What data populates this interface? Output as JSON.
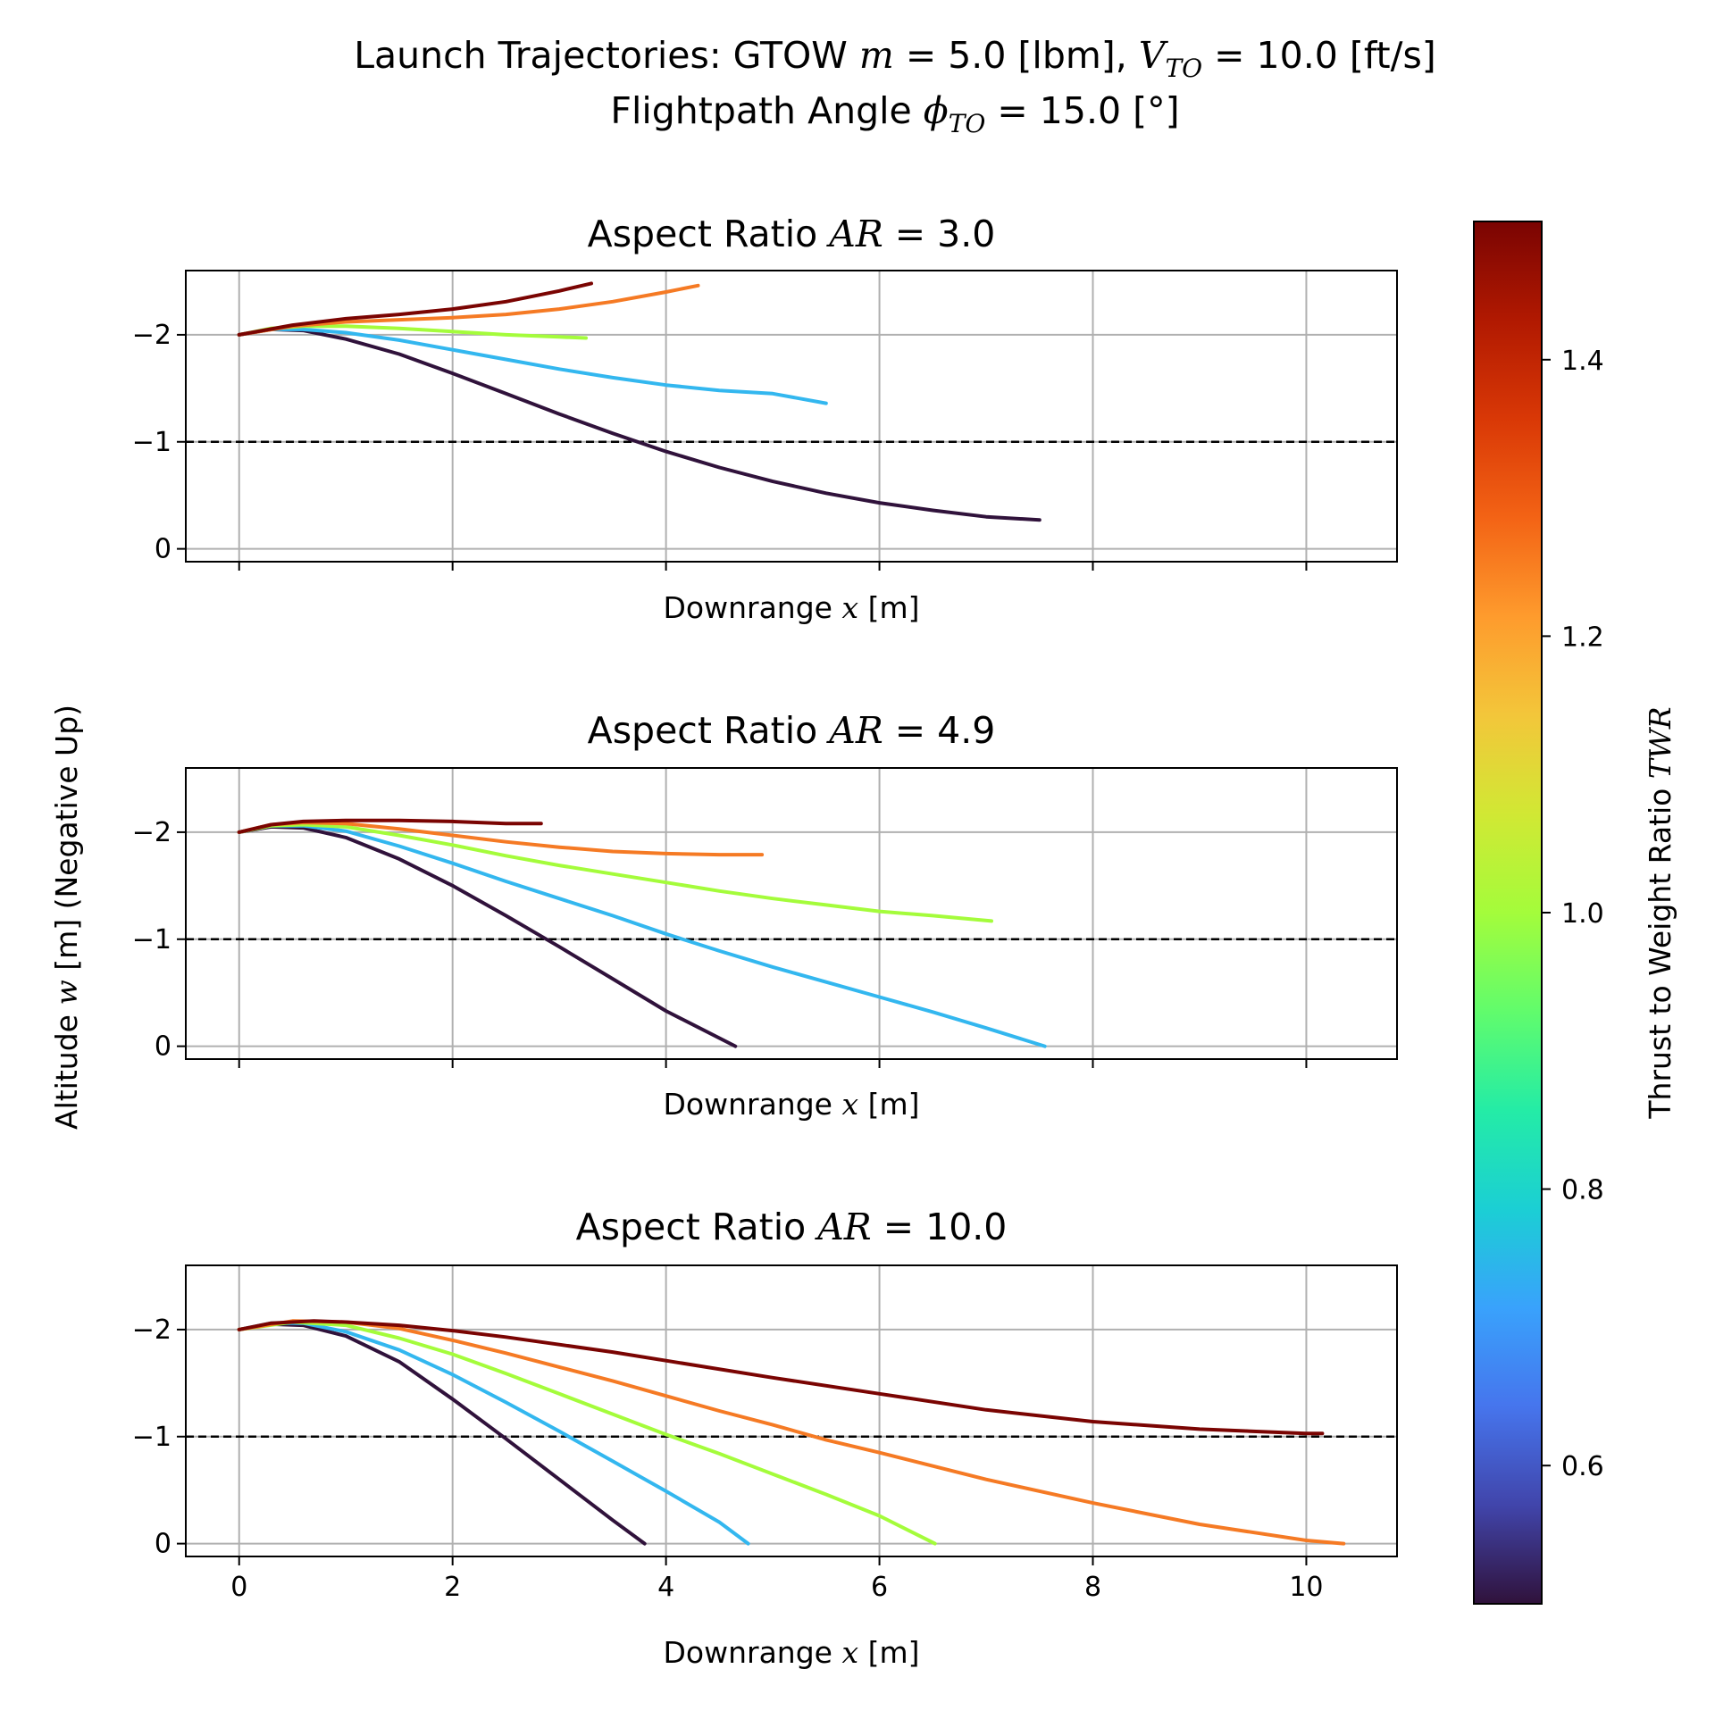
{
  "chart_data": {
    "suptitle": {
      "line1_prefix": "Launch Trajectories: GTOW ",
      "line1_m_sym": "m",
      "line1_m_val": " = 5.0 [lbm], ",
      "line1_v_sym": "V",
      "line1_v_sub": "TO",
      "line1_v_val": " = 10.0 [ft/s]",
      "line2_prefix": "Flightpath Angle ",
      "line2_phi_sym": "ϕ",
      "line2_phi_sub": "TO",
      "line2_phi_val": " = 15.0 [°]"
    },
    "shared_ylabel": "Altitude w [m] (Negative Up)",
    "shared_ylabel_prefix": "Altitude ",
    "shared_ylabel_sym": "w",
    "shared_ylabel_suffix": " [m] (Negative Up)",
    "xlabel_prefix": "Downrange ",
    "xlabel_sym": "x",
    "xlabel_suffix": " [m]",
    "xlim": [
      -0.5,
      10.85
    ],
    "ylim": [
      0.12,
      -2.6
    ],
    "y_inverted": true,
    "x_ticks": [
      0,
      2,
      4,
      6,
      8,
      10
    ],
    "x_tick_labels": [
      "0",
      "2",
      "4",
      "6",
      "8",
      "10"
    ],
    "y_ticks": [
      -2,
      -1,
      0
    ],
    "y_tick_labels": [
      "−2",
      "−1",
      "0"
    ],
    "grid": true,
    "reference_line": {
      "y": -1,
      "style": "dashed",
      "color": "#000000"
    },
    "colorbar": {
      "label_prefix": "Thrust to Weight Ratio ",
      "label_sym": "TWR",
      "range": [
        0.5,
        1.5
      ],
      "ticks": [
        0.6,
        0.8,
        1.0,
        1.2,
        1.4
      ],
      "tick_labels": [
        "0.6",
        "0.8",
        "1.0",
        "1.2",
        "1.4"
      ],
      "colormap": "turbo",
      "stops": [
        "#30123b",
        "#4145ab",
        "#4675ed",
        "#39a2fc",
        "#1bcfd4",
        "#24eca6",
        "#61fc6c",
        "#a4fc3b",
        "#d1e834",
        "#f3c63a",
        "#fe9b2d",
        "#f36315",
        "#d93806",
        "#b11901",
        "#7a0402"
      ]
    },
    "panels": [
      {
        "type": "line",
        "title_prefix": "Aspect Ratio ",
        "title_sym": "AR",
        "title_val": " = 3.0",
        "show_x_tick_labels": false,
        "series": [
          {
            "twr": 0.5,
            "color": "#30123b",
            "x": [
              0,
              0.3,
              0.6,
              1.0,
              1.5,
              2.0,
              2.5,
              3.0,
              3.5,
              4.0,
              4.5,
              5.0,
              5.5,
              6.0,
              6.5,
              7.0,
              7.5
            ],
            "y": [
              -2.0,
              -2.05,
              -2.04,
              -1.96,
              -1.82,
              -1.64,
              -1.45,
              -1.26,
              -1.08,
              -0.91,
              -0.76,
              -0.63,
              -0.52,
              -0.43,
              -0.36,
              -0.3,
              -0.27
            ]
          },
          {
            "twr": 0.75,
            "color": "#33b7ef",
            "x": [
              0,
              0.3,
              0.6,
              1.0,
              1.5,
              2.0,
              2.5,
              3.0,
              3.5,
              4.0,
              4.5,
              5.0,
              5.5
            ],
            "y": [
              -2.0,
              -2.05,
              -2.05,
              -2.02,
              -1.95,
              -1.86,
              -1.77,
              -1.68,
              -1.6,
              -1.53,
              -1.48,
              -1.45,
              -1.36
            ]
          },
          {
            "twr": 1.0,
            "color": "#a4fc3b",
            "x": [
              0,
              0.3,
              0.6,
              1.0,
              1.5,
              2.0,
              2.5,
              3.0,
              3.25
            ],
            "y": [
              -2.0,
              -2.06,
              -2.08,
              -2.08,
              -2.06,
              -2.03,
              -2.0,
              -1.98,
              -1.97
            ]
          },
          {
            "twr": 1.25,
            "color": "#f57a24",
            "x": [
              0,
              0.5,
              1.0,
              1.5,
              2.0,
              2.5,
              3.0,
              3.5,
              4.0,
              4.3
            ],
            "y": [
              -2.0,
              -2.08,
              -2.12,
              -2.14,
              -2.16,
              -2.19,
              -2.24,
              -2.31,
              -2.4,
              -2.46
            ]
          },
          {
            "twr": 1.5,
            "color": "#7a0402",
            "x": [
              0,
              0.5,
              1.0,
              1.5,
              2.0,
              2.5,
              3.0,
              3.3
            ],
            "y": [
              -2.0,
              -2.09,
              -2.15,
              -2.19,
              -2.24,
              -2.31,
              -2.41,
              -2.48
            ]
          }
        ]
      },
      {
        "type": "line",
        "title_prefix": "Aspect Ratio ",
        "title_sym": "AR",
        "title_val": " = 4.9",
        "show_x_tick_labels": false,
        "series": [
          {
            "twr": 0.5,
            "color": "#30123b",
            "x": [
              0,
              0.3,
              0.6,
              1.0,
              1.5,
              2.0,
              2.5,
              3.0,
              3.5,
              4.0,
              4.65
            ],
            "y": [
              -2.0,
              -2.05,
              -2.04,
              -1.95,
              -1.75,
              -1.5,
              -1.22,
              -0.93,
              -0.63,
              -0.33,
              0.0
            ]
          },
          {
            "twr": 0.75,
            "color": "#33b7ef",
            "x": [
              0,
              0.3,
              0.6,
              1.0,
              1.5,
              2.0,
              2.5,
              3.0,
              3.5,
              4.0,
              4.5,
              5.0,
              5.5,
              6.0,
              6.5,
              7.0,
              7.55
            ],
            "y": [
              -2.0,
              -2.06,
              -2.06,
              -2.01,
              -1.87,
              -1.71,
              -1.54,
              -1.38,
              -1.22,
              -1.05,
              -0.89,
              -0.74,
              -0.6,
              -0.46,
              -0.32,
              -0.17,
              0.0
            ]
          },
          {
            "twr": 1.0,
            "color": "#a4fc3b",
            "x": [
              0,
              0.3,
              0.6,
              1.0,
              1.5,
              2.0,
              2.5,
              3.0,
              3.5,
              4.0,
              4.5,
              5.0,
              5.5,
              6.0,
              6.5,
              7.05
            ],
            "y": [
              -2.0,
              -2.06,
              -2.07,
              -2.05,
              -1.97,
              -1.88,
              -1.78,
              -1.69,
              -1.61,
              -1.53,
              -1.45,
              -1.38,
              -1.32,
              -1.26,
              -1.22,
              -1.17
            ]
          },
          {
            "twr": 1.25,
            "color": "#f57a24",
            "x": [
              0,
              0.3,
              0.6,
              1.0,
              1.5,
              2.0,
              2.5,
              3.0,
              3.5,
              4.0,
              4.5,
              4.9
            ],
            "y": [
              -2.0,
              -2.07,
              -2.09,
              -2.08,
              -2.03,
              -1.97,
              -1.91,
              -1.86,
              -1.82,
              -1.8,
              -1.79,
              -1.79
            ]
          },
          {
            "twr": 1.5,
            "color": "#7a0402",
            "x": [
              0,
              0.3,
              0.6,
              1.0,
              1.5,
              2.0,
              2.5,
              2.83
            ],
            "y": [
              -2.0,
              -2.07,
              -2.1,
              -2.11,
              -2.11,
              -2.1,
              -2.08,
              -2.08
            ]
          }
        ]
      },
      {
        "type": "line",
        "title_prefix": "Aspect Ratio ",
        "title_sym": "AR",
        "title_val": " = 10.0",
        "show_x_tick_labels": true,
        "series": [
          {
            "twr": 0.5,
            "color": "#30123b",
            "x": [
              0,
              0.3,
              0.6,
              1.0,
              1.5,
              2.0,
              2.5,
              3.0,
              3.5,
              3.8
            ],
            "y": [
              -2.0,
              -2.05,
              -2.04,
              -1.94,
              -1.7,
              -1.35,
              -0.98,
              -0.6,
              -0.22,
              0.0
            ]
          },
          {
            "twr": 0.75,
            "color": "#33b7ef",
            "x": [
              0,
              0.3,
              0.6,
              1.0,
              1.5,
              2.0,
              2.5,
              3.0,
              3.5,
              4.0,
              4.5,
              4.77
            ],
            "y": [
              -2.0,
              -2.06,
              -2.06,
              -1.98,
              -1.81,
              -1.58,
              -1.32,
              -1.05,
              -0.77,
              -0.49,
              -0.2,
              0.0
            ]
          },
          {
            "twr": 1.0,
            "color": "#a4fc3b",
            "x": [
              0,
              0.5,
              1.0,
              1.5,
              2.0,
              2.5,
              3.0,
              3.5,
              4.0,
              4.5,
              5.0,
              5.5,
              6.0,
              6.52
            ],
            "y": [
              -2.0,
              -2.07,
              -2.04,
              -1.92,
              -1.77,
              -1.59,
              -1.4,
              -1.21,
              -1.02,
              -0.84,
              -0.65,
              -0.46,
              -0.26,
              0.0
            ]
          },
          {
            "twr": 1.25,
            "color": "#f57a24",
            "x": [
              0,
              0.5,
              1.0,
              1.5,
              2.0,
              2.5,
              3.0,
              3.5,
              4.0,
              4.5,
              5.0,
              5.5,
              6.0,
              7.0,
              8.0,
              9.0,
              10.0,
              10.35
            ],
            "y": [
              -2.0,
              -2.08,
              -2.07,
              -2.01,
              -1.9,
              -1.78,
              -1.65,
              -1.52,
              -1.38,
              -1.24,
              -1.11,
              -0.97,
              -0.85,
              -0.6,
              -0.38,
              -0.18,
              -0.03,
              0.0
            ]
          },
          {
            "twr": 1.5,
            "color": "#7a0402",
            "x": [
              0,
              0.3,
              0.7,
              1.0,
              1.5,
              2.0,
              2.5,
              3.0,
              3.5,
              4.0,
              5.0,
              6.0,
              7.0,
              8.0,
              9.0,
              10.0,
              10.15
            ],
            "y": [
              -2.0,
              -2.06,
              -2.08,
              -2.07,
              -2.04,
              -1.99,
              -1.93,
              -1.86,
              -1.79,
              -1.71,
              -1.55,
              -1.4,
              -1.25,
              -1.14,
              -1.07,
              -1.03,
              -1.03
            ]
          }
        ]
      }
    ]
  }
}
